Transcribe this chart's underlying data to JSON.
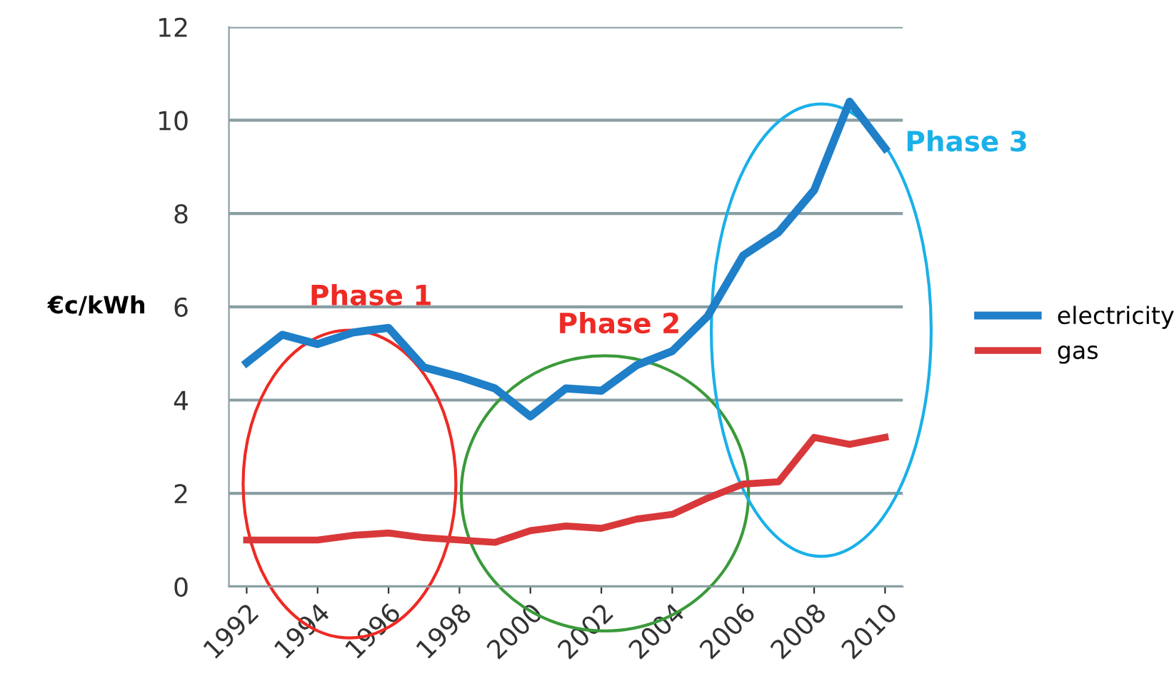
{
  "chart_data": {
    "type": "line",
    "ylabel": "€c/kWh",
    "x": [
      1992,
      1993,
      1994,
      1995,
      1996,
      1997,
      1998,
      1999,
      2000,
      2001,
      2002,
      2003,
      2004,
      2005,
      2006,
      2007,
      2008,
      2009,
      2010
    ],
    "series": [
      {
        "name": "electricity",
        "color": "#1f7fc8",
        "values": [
          4.8,
          5.4,
          5.2,
          5.45,
          5.55,
          4.7,
          4.5,
          4.25,
          3.65,
          4.25,
          4.2,
          4.75,
          5.05,
          5.8,
          7.1,
          7.6,
          8.5,
          10.4,
          9.4
        ]
      },
      {
        "name": "gas",
        "color": "#d9383a",
        "values": [
          1.0,
          1.0,
          1.0,
          1.1,
          1.15,
          1.05,
          1.0,
          0.95,
          1.2,
          1.3,
          1.25,
          1.45,
          1.55,
          1.9,
          2.2,
          2.25,
          3.2,
          3.05,
          3.2
        ]
      }
    ],
    "xlim": [
      1991.5,
      2010.5
    ],
    "xticks": [
      1992,
      1994,
      1996,
      1998,
      2000,
      2002,
      2004,
      2006,
      2008,
      2010
    ],
    "ylim": [
      0,
      12
    ],
    "yticks": [
      0,
      2,
      4,
      6,
      8,
      10,
      12
    ],
    "grid": "y",
    "legend": "right",
    "marker": "none",
    "line_style": "solid",
    "annotations": [
      "Phase 1",
      "Phase 2",
      "Phase 3"
    ]
  }
}
